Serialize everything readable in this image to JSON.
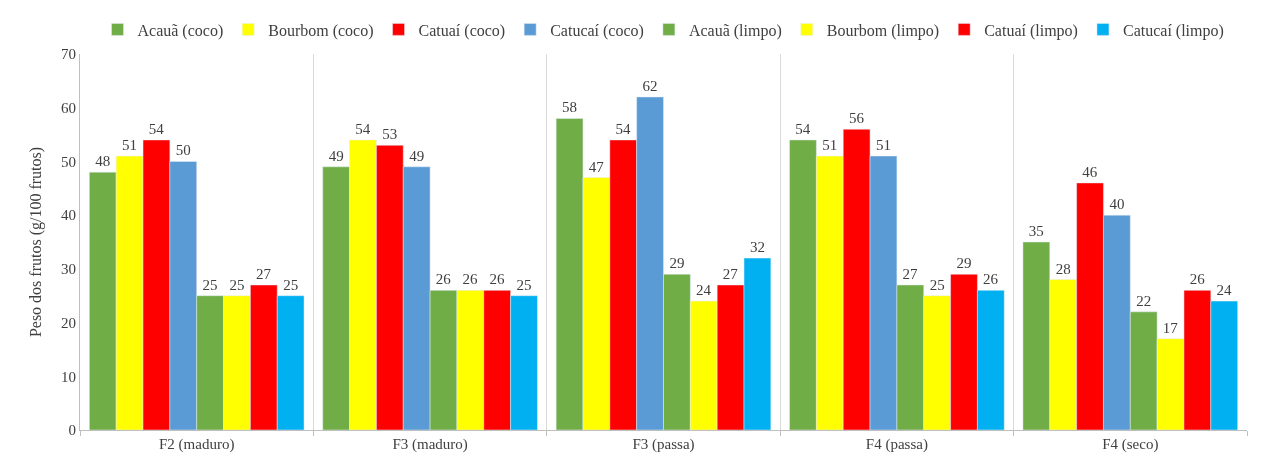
{
  "chart_data": {
    "type": "bar",
    "ylabel": "Peso dos frutos (g/100 frutos)",
    "categories": [
      "F2 (maduro)",
      "F3 (maduro)",
      "F3 (passa)",
      "F4 (passa)",
      "F4 (seco)"
    ],
    "series": [
      {
        "name": "Acauã (coco)",
        "color": "#70ad47",
        "values": [
          48,
          49,
          58,
          54,
          35
        ]
      },
      {
        "name": "Bourbom (coco)",
        "color": "#ffff00",
        "values": [
          51,
          54,
          47,
          51,
          28
        ]
      },
      {
        "name": "Catuaí (coco)",
        "color": "#ff0000",
        "values": [
          54,
          53,
          54,
          56,
          46
        ]
      },
      {
        "name": "Catucaí (coco)",
        "color": "#5b9bd5",
        "values": [
          50,
          49,
          62,
          51,
          40
        ]
      },
      {
        "name": "Acauã (limpo)",
        "color": "#70ad47",
        "values": [
          25,
          26,
          29,
          27,
          22
        ]
      },
      {
        "name": "Bourbom (limpo)",
        "color": "#ffff00",
        "values": [
          25,
          26,
          24,
          25,
          17
        ]
      },
      {
        "name": "Catuaí (limpo)",
        "color": "#ff0000",
        "values": [
          27,
          26,
          27,
          29,
          26
        ]
      },
      {
        "name": "Catucaí (limpo)",
        "color": "#00b0f0",
        "values": [
          25,
          25,
          32,
          26,
          24
        ]
      }
    ],
    "ylim": [
      0,
      70
    ],
    "yticks": [
      0,
      10,
      20,
      30,
      40,
      50,
      60,
      70
    ],
    "grid": "x",
    "legend": "top",
    "data_labels": true
  }
}
